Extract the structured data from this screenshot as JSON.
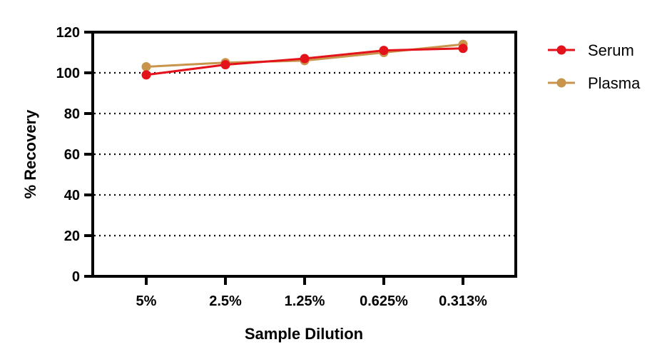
{
  "chart_data": {
    "type": "line",
    "categories": [
      "5%",
      "2.5%",
      "1.25%",
      "0.625%",
      "0.313%"
    ],
    "series": [
      {
        "name": "Serum",
        "values": [
          99,
          104,
          107,
          111,
          112
        ],
        "color": "#e3121b"
      },
      {
        "name": "Plasma",
        "values": [
          103,
          105,
          106,
          110,
          114
        ],
        "color": "#c9954c"
      }
    ],
    "xlabel": "Sample Dilution",
    "ylabel": "% Recovery",
    "ylim": [
      0,
      120
    ],
    "yticks": [
      0,
      20,
      40,
      60,
      80,
      100,
      120
    ],
    "ytick_labels": [
      "0",
      "20",
      "40",
      "60",
      "80",
      "100",
      "120"
    ],
    "grid": "horizontal dotted",
    "legend": "right"
  }
}
